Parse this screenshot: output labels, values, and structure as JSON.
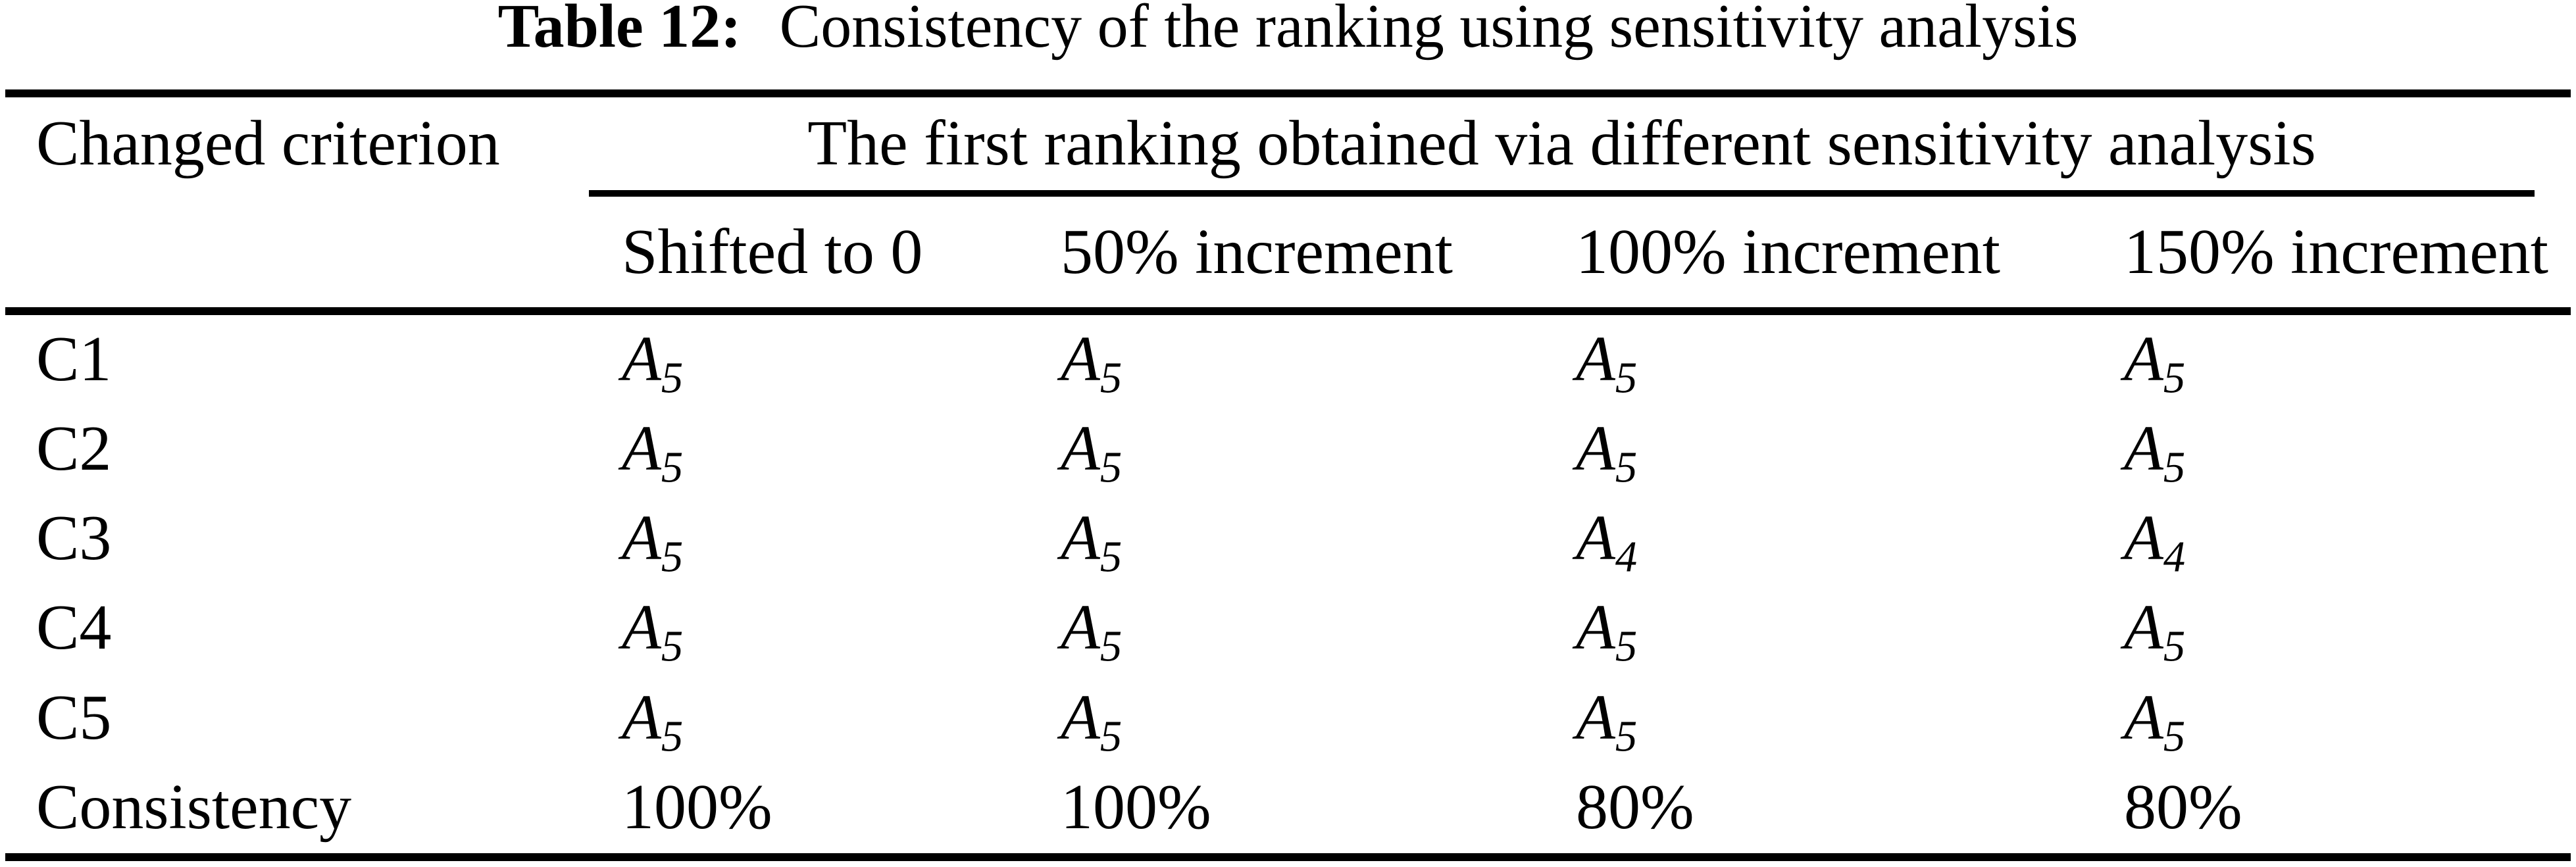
{
  "title": {
    "label": "Table 12:",
    "caption": "Consistency of the ranking using sensitivity analysis"
  },
  "table": {
    "col1_header": "Changed criterion",
    "group_header": "The first ranking obtained via different sensitivity analysis",
    "sub_headers": [
      "Shifted to 0",
      "50% increment",
      "100% increment",
      "150% increment"
    ],
    "rows": [
      {
        "label": "C1",
        "cells": [
          {
            "base": "A",
            "sub": "5"
          },
          {
            "base": "A",
            "sub": "5"
          },
          {
            "base": "A",
            "sub": "5"
          },
          {
            "base": "A",
            "sub": "5"
          }
        ]
      },
      {
        "label": "C2",
        "cells": [
          {
            "base": "A",
            "sub": "5"
          },
          {
            "base": "A",
            "sub": "5"
          },
          {
            "base": "A",
            "sub": "5"
          },
          {
            "base": "A",
            "sub": "5"
          }
        ]
      },
      {
        "label": "C3",
        "cells": [
          {
            "base": "A",
            "sub": "5"
          },
          {
            "base": "A",
            "sub": "5"
          },
          {
            "base": "A",
            "sub": "4"
          },
          {
            "base": "A",
            "sub": "4"
          }
        ]
      },
      {
        "label": "C4",
        "cells": [
          {
            "base": "A",
            "sub": "5"
          },
          {
            "base": "A",
            "sub": "5"
          },
          {
            "base": "A",
            "sub": "5"
          },
          {
            "base": "A",
            "sub": "5"
          }
        ]
      },
      {
        "label": "C5",
        "cells": [
          {
            "base": "A",
            "sub": "5"
          },
          {
            "base": "A",
            "sub": "5"
          },
          {
            "base": "A",
            "sub": "5"
          },
          {
            "base": "A",
            "sub": "5"
          }
        ]
      }
    ],
    "footer": {
      "label": "Consistency",
      "values": [
        "100%",
        "100%",
        "80%",
        "80%"
      ]
    }
  },
  "colors": {
    "text": "#000000",
    "background": "#ffffff",
    "rule": "#000000"
  }
}
